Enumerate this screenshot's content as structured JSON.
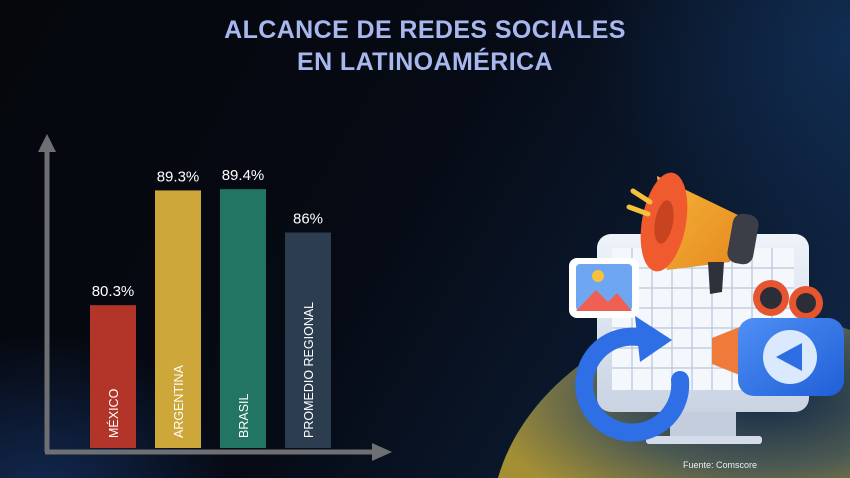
{
  "title": {
    "line1": "ALCANCE DE REDES SOCIALES",
    "line2": "EN LATINOAMÉRICA"
  },
  "source": "Fuente: Comscore",
  "chart_data": {
    "type": "bar",
    "title": "ALCANCE DE REDES SOCIALES EN LATINOAMÉRICA",
    "categories": [
      "MÉXICO",
      "ARGENTINA",
      "BRASIL",
      "PROMEDIO REGIONAL"
    ],
    "values": [
      80.3,
      89.3,
      89.4,
      86
    ],
    "value_labels": [
      "80.3%",
      "89.3%",
      "89.4%",
      "86%"
    ],
    "bar_colors": [
      "#b3352a",
      "#cda73a",
      "#237563",
      "#2c3d50"
    ],
    "category_label_colors": [
      "#ffffff",
      "#ffffff",
      "#ffffff",
      "#ffffff"
    ],
    "axis_color": "#6d6f73",
    "label_color": "#ffffff",
    "xlabel": "",
    "ylabel": "",
    "grid": false,
    "legend": "none"
  },
  "colors": {
    "title": "#a8b8ee",
    "background": "#060a14",
    "accent_curve": "#9a8b3a"
  },
  "icons": [
    "megaphone-icon",
    "image-icon",
    "refresh-icon",
    "camera-icon",
    "play-icon",
    "monitor-icon"
  ]
}
